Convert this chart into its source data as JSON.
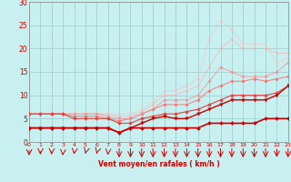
{
  "background_color": "#c8f0f0",
  "grid_color": "#99cccc",
  "xlabel": "Vent moyen/en rafales ( km/h )",
  "xlim": [
    0,
    23
  ],
  "ylim": [
    0,
    30
  ],
  "xticks": [
    0,
    1,
    2,
    3,
    4,
    5,
    6,
    7,
    8,
    9,
    10,
    11,
    12,
    13,
    14,
    15,
    16,
    17,
    18,
    19,
    20,
    21,
    22,
    23
  ],
  "yticks": [
    0,
    5,
    10,
    15,
    20,
    25,
    30
  ],
  "series": [
    {
      "x": [
        0,
        1,
        2,
        3,
        4,
        5,
        6,
        7,
        8,
        9,
        10,
        11,
        12,
        13,
        14,
        15,
        16,
        17,
        18,
        19,
        20,
        21,
        22,
        23
      ],
      "y": [
        3,
        3,
        3,
        3,
        3,
        3,
        3,
        3,
        2,
        3,
        3,
        3,
        3,
        3,
        3,
        3,
        4,
        4,
        4,
        4,
        4,
        5,
        5,
        5
      ],
      "color": "#cc0000",
      "lw": 1.2,
      "marker": "D",
      "ms": 2.0,
      "alpha": 1.0,
      "zorder": 5
    },
    {
      "x": [
        0,
        1,
        2,
        3,
        4,
        5,
        6,
        7,
        8,
        9,
        10,
        11,
        12,
        13,
        14,
        15,
        16,
        17,
        18,
        19,
        20,
        21,
        22,
        23
      ],
      "y": [
        3,
        3,
        3,
        3,
        3,
        3,
        3,
        3,
        2,
        3,
        4,
        5,
        5.5,
        5,
        5,
        6,
        7,
        8,
        9,
        9,
        9,
        9,
        10,
        12
      ],
      "color": "#cc0000",
      "lw": 1.0,
      "marker": "v",
      "ms": 2.5,
      "alpha": 1.0,
      "zorder": 4
    },
    {
      "x": [
        0,
        1,
        2,
        3,
        4,
        5,
        6,
        7,
        8,
        9,
        10,
        11,
        12,
        13,
        14,
        15,
        16,
        17,
        18,
        19,
        20,
        21,
        22,
        23
      ],
      "y": [
        6,
        6,
        6,
        6,
        5,
        5,
        5,
        5,
        4,
        4,
        5,
        5.5,
        6,
        6,
        6.5,
        7,
        8,
        9,
        10,
        10,
        10,
        10,
        10.5,
        12
      ],
      "color": "#dd4444",
      "lw": 0.9,
      "marker": "D",
      "ms": 2.0,
      "alpha": 0.9,
      "zorder": 3
    },
    {
      "x": [
        0,
        1,
        2,
        3,
        4,
        5,
        6,
        7,
        8,
        9,
        10,
        11,
        12,
        13,
        14,
        15,
        16,
        17,
        18,
        19,
        20,
        21,
        22,
        23
      ],
      "y": [
        6,
        6,
        6,
        6,
        5.5,
        5.5,
        5.5,
        5,
        4.5,
        5,
        6,
        7,
        8,
        8,
        8,
        9,
        11,
        12,
        13,
        13,
        13.5,
        13,
        13.5,
        14
      ],
      "color": "#ff6666",
      "lw": 0.8,
      "marker": "D",
      "ms": 1.8,
      "alpha": 0.75,
      "zorder": 2
    },
    {
      "x": [
        0,
        1,
        2,
        3,
        4,
        5,
        6,
        7,
        8,
        9,
        10,
        11,
        12,
        13,
        14,
        15,
        16,
        17,
        18,
        19,
        20,
        21,
        22,
        23
      ],
      "y": [
        6,
        6,
        6,
        6,
        6,
        6,
        6,
        5.5,
        5,
        5,
        6,
        7,
        9,
        9,
        9,
        10,
        13,
        16,
        15,
        14,
        14,
        14,
        15,
        17
      ],
      "color": "#ff8888",
      "lw": 0.8,
      "marker": "D",
      "ms": 1.8,
      "alpha": 0.65,
      "zorder": 2
    },
    {
      "x": [
        0,
        1,
        2,
        3,
        4,
        5,
        6,
        7,
        8,
        9,
        10,
        11,
        12,
        13,
        14,
        15,
        16,
        17,
        18,
        19,
        20,
        21,
        22,
        23
      ],
      "y": [
        6,
        6,
        6,
        6,
        6,
        6,
        6,
        6,
        5.5,
        5.5,
        6.5,
        8,
        10,
        10,
        11,
        12,
        16,
        20,
        22,
        20,
        20,
        20,
        19,
        19
      ],
      "color": "#ffaaaa",
      "lw": 0.7,
      "marker": "D",
      "ms": 1.5,
      "alpha": 0.6,
      "zorder": 1
    },
    {
      "x": [
        0,
        1,
        2,
        3,
        4,
        5,
        6,
        7,
        8,
        9,
        10,
        11,
        12,
        13,
        14,
        15,
        16,
        17,
        18,
        19,
        20,
        21,
        22,
        23
      ],
      "y": [
        6,
        6,
        6,
        6,
        6,
        6,
        6,
        6,
        6,
        6,
        7,
        8.5,
        11,
        11,
        12,
        13.5,
        22,
        26,
        24,
        21,
        21,
        21,
        17,
        18
      ],
      "color": "#ffbbbb",
      "lw": 0.7,
      "marker": "D",
      "ms": 1.5,
      "alpha": 0.55,
      "zorder": 1
    }
  ],
  "wind_x": [
    0,
    1,
    2,
    3,
    4,
    5,
    6,
    7,
    8,
    9,
    10,
    11,
    12,
    13,
    14,
    15,
    16,
    17,
    18,
    19,
    20,
    21,
    22,
    23
  ],
  "wind_color": "#cc0000"
}
